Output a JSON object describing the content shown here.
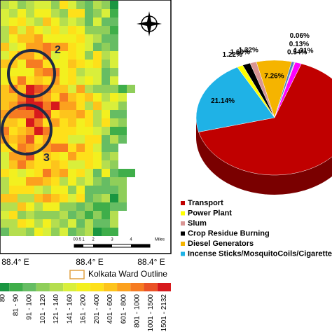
{
  "map": {
    "zone_labels": [
      "2",
      "3"
    ],
    "x_ticks": [
      "88.4° E",
      "88.4° E",
      "88.4° E"
    ],
    "outline_legend": "Kolkata Ward Outline",
    "scale_labels": [
      "0",
      "0.5",
      "1",
      "2",
      "3",
      "4",
      "Miles"
    ],
    "color_bins": [
      "80",
      "81 - 90",
      "91 - 100",
      "101 - 120",
      "121 - 140",
      "141 - 160",
      "161 - 200",
      "201 - 400",
      "401 - 600",
      "601 - 800",
      "801 - 1000",
      "1001 - 1500",
      "1501 - 2132"
    ],
    "bin_colors": [
      "#1a9641",
      "#3fae4a",
      "#66bd63",
      "#8fce5a",
      "#b5de4f",
      "#d9ef3b",
      "#f3f01f",
      "#fee01a",
      "#fdc41c",
      "#fca11e",
      "#f67b22",
      "#ea5226",
      "#d7191c"
    ]
  },
  "chart_data": {
    "type": "pie",
    "categories": [
      "Transport",
      "Incense Sticks/MosquitoCoils/Cigarette",
      "Power Plant",
      "Crop Residue Burning",
      "Slum",
      "Diesel Generators",
      null,
      null,
      null,
      null
    ],
    "values": [
      65.42,
      21.14,
      1.22,
      1.6,
      1.32,
      7.26,
      0.54,
      0.13,
      0.06,
      1.31
    ],
    "value_labels": [
      null,
      "21.14%",
      "1.22%",
      "1.60%",
      "1.32%",
      "7.26%",
      "0.54%",
      "0.13%",
      "0.06%",
      "1.31%"
    ],
    "colors": [
      "#c00000",
      "#1fb2e6",
      "#ffff00",
      "#000000",
      "#d99594",
      "#f5b400",
      "#4f81bd",
      "#7f7f7f",
      "#9bbb59",
      "#ff00ff"
    ]
  }
}
